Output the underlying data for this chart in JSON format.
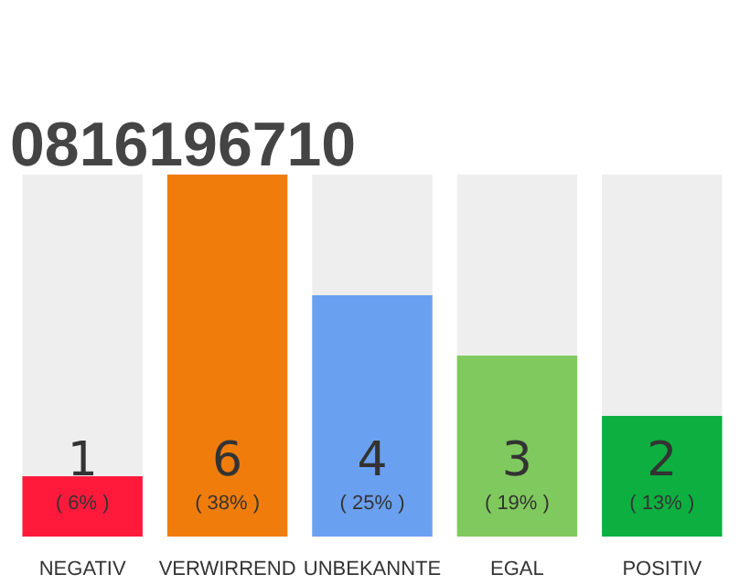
{
  "chart_data": {
    "type": "bar",
    "title": "0816196710",
    "categories": [
      "NEGATIV",
      "VERWIRREND",
      "UNBEKANNTE",
      "EGAL",
      "POSITIV"
    ],
    "stacked": true,
    "series": [
      {
        "colors": [
          "#ff1a3c",
          "#f07d0b",
          "#6aa0f0",
          "#80c95e",
          "#0db040"
        ],
        "values": [
          1,
          6,
          4,
          3,
          2
        ],
        "value_labels": [
          "1",
          "6",
          "4",
          "3",
          "2"
        ]
      },
      {
        "color": "#eeeeee",
        "values": [
          5,
          0,
          2,
          3,
          4
        ]
      }
    ],
    "annotations": [
      "( 6% )",
      "( 38% )",
      "( 25% )",
      "( 19% )",
      "( 13% )"
    ]
  }
}
